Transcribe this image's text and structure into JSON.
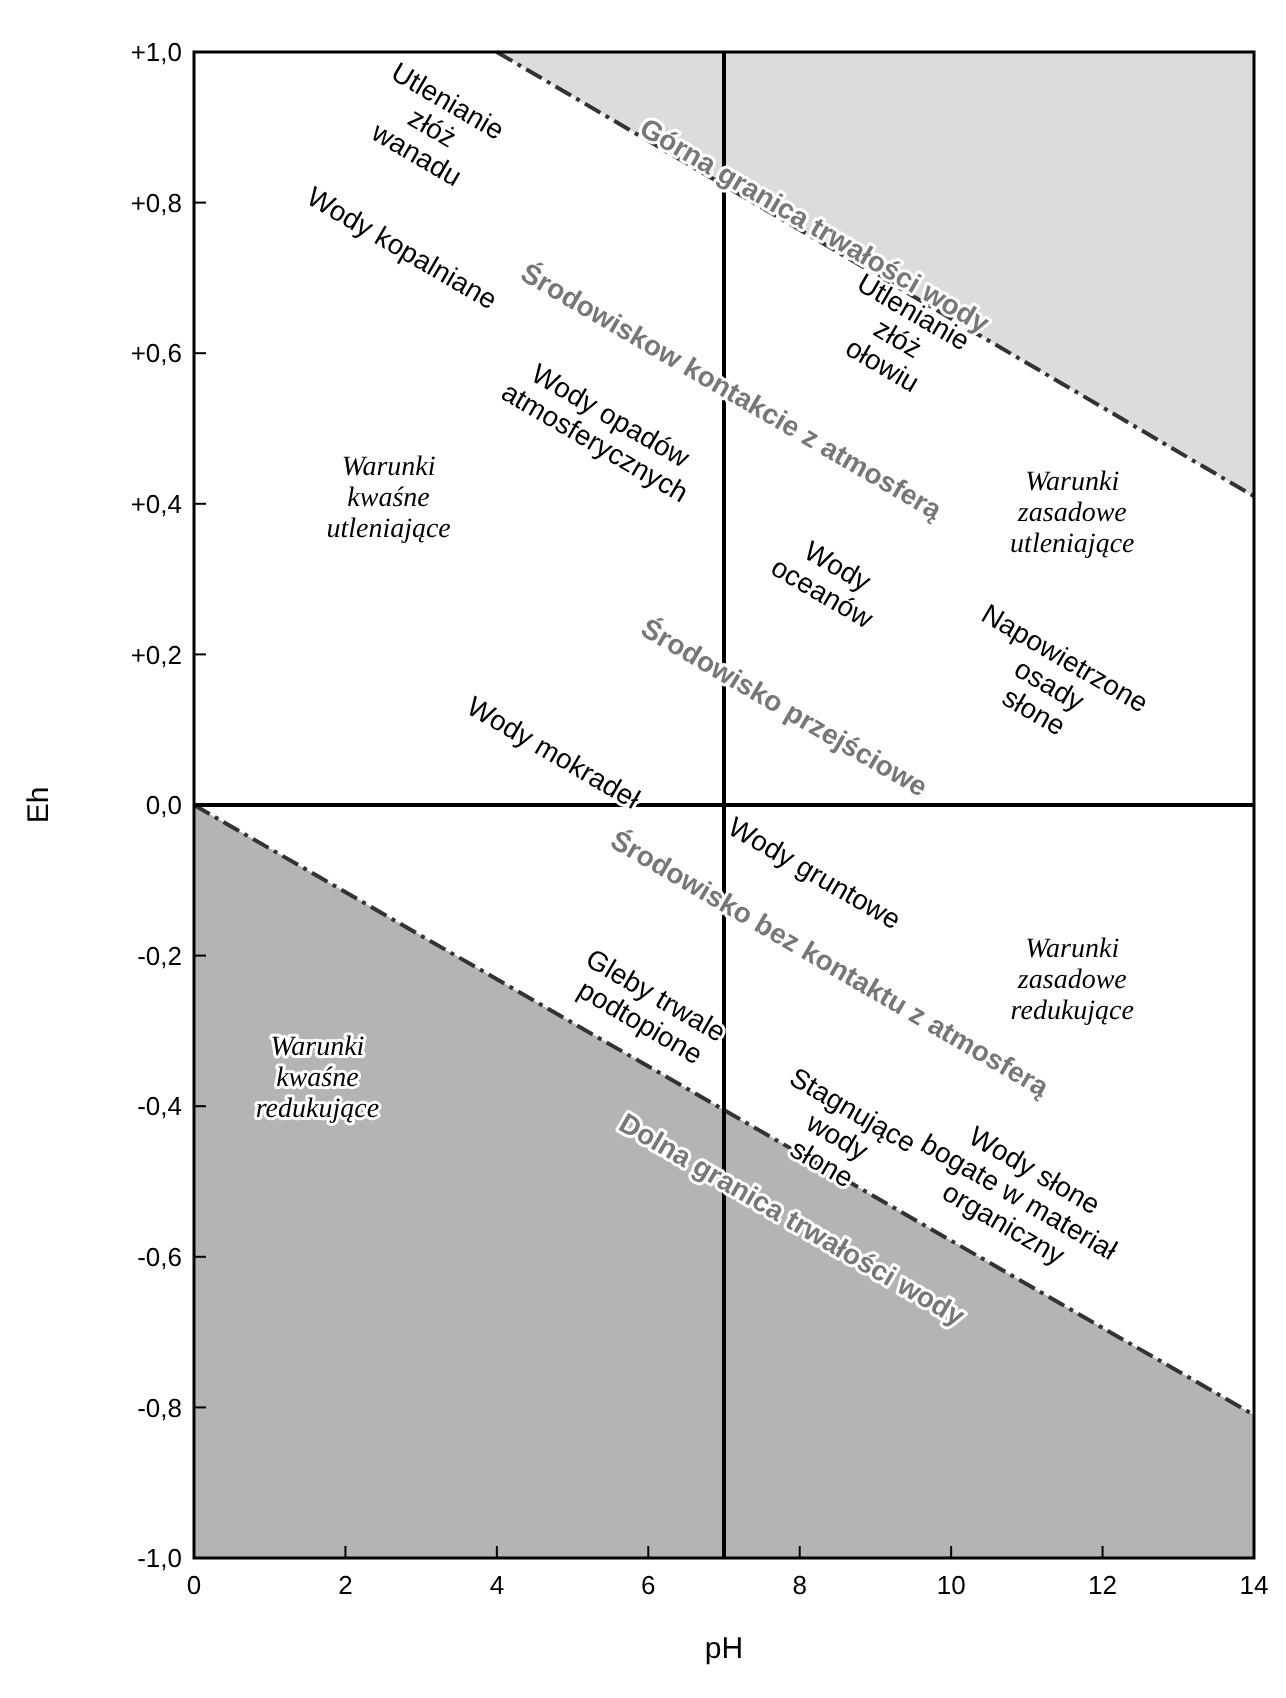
{
  "chart_data": {
    "type": "line",
    "xlabel": "pH",
    "ylabel": "Eh",
    "xlim": [
      0,
      14
    ],
    "ylim": [
      -1,
      1
    ],
    "xticks": [
      0,
      2,
      4,
      6,
      8,
      10,
      12,
      14
    ],
    "yticks": [
      {
        "value": -1,
        "label": "-1,0"
      },
      {
        "value": -0.8,
        "label": "-0,8"
      },
      {
        "value": -0.6,
        "label": "-0,6"
      },
      {
        "value": -0.4,
        "label": "-0,4"
      },
      {
        "value": -0.2,
        "label": "-0,2"
      },
      {
        "value": 0,
        "label": "0,0"
      },
      {
        "value": 0.2,
        "label": "+0,2"
      },
      {
        "value": 0.4,
        "label": "+0,4"
      },
      {
        "value": 0.6,
        "label": "+0,6"
      },
      {
        "value": 0.8,
        "label": "+0,8"
      },
      {
        "value": 1,
        "label": "+1,0"
      }
    ],
    "line_style": "dashed",
    "series": [
      {
        "color": "#333333",
        "x": [
          4,
          14
        ],
        "values": [
          1.0,
          0.41
        ],
        "lower": [
          1.0,
          0.41
        ],
        "upper": [
          1.0,
          1.0
        ]
      },
      {
        "color": "#333333",
        "x": [
          0,
          14
        ],
        "values": [
          0,
          -0.81
        ],
        "lower": [
          -1,
          -1
        ],
        "upper": [
          0,
          -0.81
        ]
      }
    ],
    "ref_lines": [
      {
        "axis": "x",
        "value": 7,
        "color": "#000000"
      },
      {
        "axis": "y",
        "value": 0,
        "color": "#000000"
      }
    ],
    "annotations": [
      "Utlenianie\nzłóż\nwanadu",
      "Górna granica trwałości wody",
      "Wody kopalniane",
      "Środowiskow kontakcie z atmosferą",
      "Utlenianie\nzłóż\nołowiu",
      "Warunki\nkwaśne\nutleniające",
      "Wody opadów\natmosferycznych",
      "Wody\noceanów",
      "Warunki\nzasadowe\nutleniające",
      "Napowietrzone\nosady\nsłone",
      "Środowisko przejściowe",
      "Wody mokradeł",
      "Wody gruntowe",
      "Środowisko bez kontaktu z atmosferą",
      "Warunki\nzasadowe\nredukujące",
      "Warunki\nkwaśne\nredukujące",
      "Gleby trwale\npodtopione",
      "Stagnujące\nwody\nsłone",
      "Wody słone\nbogate w materiał\norganiczny",
      "Dolna granica trwałości wody"
    ]
  }
}
